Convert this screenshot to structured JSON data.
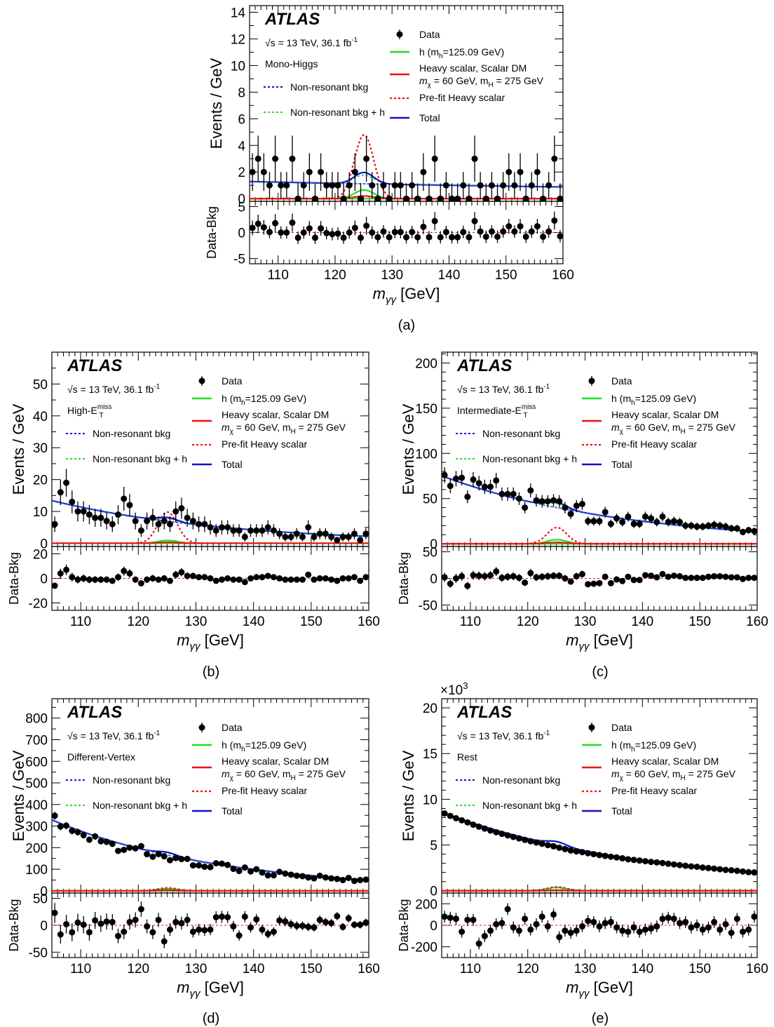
{
  "figure": {
    "experiment": "ATLAS",
    "energy_text": "√s = 13 TeV, 36.1 fb",
    "energy_sup": "-1",
    "xaxis_m": "m",
    "xaxis_sub": "γγ",
    "xaxis_unit": "[GeV]",
    "ylabel_top": "Events / GeV",
    "ylabel_bottom": "Data-Bkg",
    "legend": [
      {
        "id": "data",
        "label": "Data",
        "style": "marker",
        "color": "#000000"
      },
      {
        "id": "h",
        "label": "h (m",
        "sub": "h",
        "tail": "=125.09 GeV)",
        "style": "solid",
        "color": "#22dd22"
      },
      {
        "id": "hs",
        "label": "Heavy scalar, Scalar DM",
        "line2": "m",
        "line2_sub": "χ",
        "line2_mid": " = 60 GeV, m",
        "line2_sub2": "H",
        "line2_tail": " = 275 GeV",
        "style": "solid",
        "color": "#ee1111"
      },
      {
        "id": "prefit",
        "label": "Pre-fit Heavy scalar",
        "style": "dotted",
        "color": "#ee1111"
      },
      {
        "id": "total",
        "label": "Total",
        "style": "solid",
        "color": "#1111cc"
      },
      {
        "id": "nrb",
        "label": "Non-resonant bkg",
        "style": "dotted",
        "color": "#1111cc"
      },
      {
        "id": "nrbh",
        "label": "Non-resonant bkg + h",
        "style": "dotted",
        "color": "#22dd22"
      }
    ]
  },
  "chart_data": [
    {
      "type": "scatter",
      "panel_label": "(a)",
      "category": "Mono-Higgs",
      "x": [
        105.5,
        106.5,
        107.5,
        108.5,
        109.5,
        110.5,
        111.5,
        112.5,
        113.5,
        114.5,
        115.5,
        116.5,
        117.5,
        118.5,
        119.5,
        120.5,
        121.5,
        122.5,
        123.5,
        124.5,
        125.5,
        126.5,
        127.5,
        128.5,
        129.5,
        130.5,
        131.5,
        132.5,
        133.5,
        134.5,
        135.5,
        136.5,
        137.5,
        138.5,
        139.5,
        140.5,
        141.5,
        142.5,
        143.5,
        144.5,
        145.5,
        146.5,
        147.5,
        148.5,
        149.5,
        150.5,
        151.5,
        152.5,
        153.5,
        154.5,
        155.5,
        156.5,
        157.5,
        158.5,
        159.5
      ],
      "y": [
        2,
        3,
        2,
        1,
        3,
        1,
        1,
        3,
        0,
        1,
        2,
        0,
        2,
        1,
        1,
        1,
        0,
        1,
        2,
        0,
        3,
        1,
        0,
        1,
        0,
        1,
        1,
        0,
        1,
        0,
        2,
        0,
        3,
        0,
        1,
        0,
        0,
        1,
        0,
        3,
        1,
        0,
        1,
        0,
        1,
        2,
        1,
        2,
        0,
        1,
        2,
        0,
        1,
        3,
        0
      ],
      "ylim": [
        -0.2,
        14.5
      ],
      "yticks": [
        0,
        2,
        4,
        6,
        8,
        10,
        12,
        14
      ],
      "yticks_minor": 1,
      "bkg": [
        1.28,
        0.88
      ],
      "sig_peak": 0.65,
      "prefit_peak": 4.8,
      "hs_peak": 0.2,
      "residual": [
        0.9,
        1.7,
        1.0,
        0.1,
        1.8,
        0.0,
        0.0,
        1.9,
        -1.0,
        0.0,
        0.8,
        -1.0,
        0.8,
        -0.1,
        -0.3,
        -0.2,
        -1.0,
        0.0,
        0.9,
        -1.0,
        1.3,
        0.0,
        -0.9,
        0.2,
        -0.9,
        0.1,
        0.1,
        -0.9,
        0.1,
        -0.9,
        1.1,
        -0.9,
        2.2,
        -0.9,
        0.1,
        -0.9,
        -0.9,
        0.1,
        -0.9,
        2.2,
        0.2,
        -0.8,
        0.2,
        -0.8,
        0.2,
        1.2,
        0.2,
        1.2,
        -0.8,
        0.2,
        1.2,
        -0.8,
        0.2,
        2.3,
        -0.7
      ],
      "rlim": [
        -6,
        6
      ],
      "rticks": [
        -5,
        0,
        5
      ]
    },
    {
      "type": "scatter",
      "panel_label": "(b)",
      "category": "High-E",
      "category_sub": "T",
      "category_sup": "miss",
      "x": [
        105.5,
        106.5,
        107.5,
        108.5,
        109.5,
        110.5,
        111.5,
        112.5,
        113.5,
        114.5,
        115.5,
        116.5,
        117.5,
        118.5,
        119.5,
        120.5,
        121.5,
        122.5,
        123.5,
        124.5,
        125.5,
        126.5,
        127.5,
        128.5,
        129.5,
        130.5,
        131.5,
        132.5,
        133.5,
        134.5,
        135.5,
        136.5,
        137.5,
        138.5,
        139.5,
        140.5,
        141.5,
        142.5,
        143.5,
        144.5,
        145.5,
        146.5,
        147.5,
        148.5,
        149.5,
        150.5,
        151.5,
        152.5,
        153.5,
        154.5,
        155.5,
        156.5,
        157.5,
        158.5,
        159.5
      ],
      "y": [
        6,
        16,
        19,
        13,
        10,
        10,
        9,
        8,
        8,
        7,
        6,
        9,
        14,
        12,
        7,
        4,
        7,
        8,
        6,
        7,
        6,
        10,
        11,
        8,
        7,
        6,
        6,
        5,
        4,
        5,
        5,
        4,
        4,
        2,
        4,
        4,
        4,
        5,
        4,
        3,
        2,
        2,
        3,
        2,
        5,
        2,
        3,
        3,
        2,
        1,
        2,
        2,
        3,
        1,
        3
      ],
      "ylim": [
        -1,
        60
      ],
      "yticks": [
        0,
        10,
        20,
        30,
        40,
        50
      ],
      "yticks_minor": 5,
      "bkg": [
        13.2,
        2.2
      ],
      "sig_peak": 0.9,
      "prefit_peak": 9.8,
      "hs_peak": 0.3,
      "residual": [
        -6,
        4,
        7,
        1,
        -1,
        0,
        -1,
        -1,
        -1,
        -1,
        -2,
        1,
        6,
        4,
        -1,
        -4,
        -1,
        0,
        -1,
        0,
        -2,
        3,
        5,
        2,
        2,
        1,
        1,
        0,
        -2,
        -1,
        0,
        -1,
        -1,
        -3,
        0,
        1,
        1,
        2,
        1,
        0,
        -1,
        -1,
        -1,
        -1,
        3,
        -1,
        0,
        0,
        -1,
        -2,
        0,
        0,
        1,
        -2,
        1
      ],
      "rlim": [
        -26,
        26
      ],
      "rticks": [
        -20,
        0,
        20
      ]
    },
    {
      "type": "scatter",
      "panel_label": "(c)",
      "category": "Intermediate-E",
      "category_sub": "T",
      "category_sup": "miss",
      "x": [
        105.5,
        106.5,
        107.5,
        108.5,
        109.5,
        110.5,
        111.5,
        112.5,
        113.5,
        114.5,
        115.5,
        116.5,
        117.5,
        118.5,
        119.5,
        120.5,
        121.5,
        122.5,
        123.5,
        124.5,
        125.5,
        126.5,
        127.5,
        128.5,
        129.5,
        130.5,
        131.5,
        132.5,
        133.5,
        134.5,
        135.5,
        136.5,
        137.5,
        138.5,
        139.5,
        140.5,
        141.5,
        142.5,
        143.5,
        144.5,
        145.5,
        146.5,
        147.5,
        148.5,
        149.5,
        150.5,
        151.5,
        152.5,
        153.5,
        154.5,
        155.5,
        156.5,
        157.5,
        158.5,
        159.5
      ],
      "y": [
        76,
        64,
        72,
        73,
        52,
        71,
        67,
        63,
        63,
        70,
        55,
        55,
        55,
        50,
        40,
        59,
        48,
        47,
        47,
        48,
        47,
        40,
        33,
        42,
        44,
        25,
        25,
        25,
        35,
        22,
        28,
        24,
        30,
        22,
        22,
        30,
        28,
        24,
        30,
        24,
        25,
        24,
        20,
        20,
        19,
        19,
        20,
        21,
        20,
        19,
        17,
        17,
        13,
        15,
        14
      ],
      "ylim": [
        -3,
        212
      ],
      "yticks": [
        0,
        50,
        100,
        150,
        200
      ],
      "yticks_minor": 10,
      "bkg": [
        74,
        13.5
      ],
      "sig_peak": 4.5,
      "prefit_peak": 18,
      "hs_peak": 1.5,
      "residual": [
        2,
        -10,
        0,
        4,
        -14,
        6,
        5,
        4,
        6,
        13,
        1,
        3,
        4,
        1,
        -8,
        10,
        2,
        3,
        4,
        5,
        5,
        0,
        -6,
        4,
        8,
        -11,
        -10,
        -9,
        3,
        -9,
        -2,
        -5,
        3,
        -3,
        -3,
        6,
        5,
        2,
        8,
        3,
        5,
        4,
        1,
        1,
        1,
        1,
        3,
        4,
        4,
        3,
        2,
        2,
        -1,
        1,
        1
      ],
      "rlim": [
        -60,
        60
      ],
      "rticks": [
        -50,
        0,
        50
      ]
    },
    {
      "type": "scatter",
      "panel_label": "(d)",
      "category": "Different-Vertex",
      "x": [
        105.5,
        106.5,
        107.5,
        108.5,
        109.5,
        110.5,
        111.5,
        112.5,
        113.5,
        114.5,
        115.5,
        116.5,
        117.5,
        118.5,
        119.5,
        120.5,
        121.5,
        122.5,
        123.5,
        124.5,
        125.5,
        126.5,
        127.5,
        128.5,
        129.5,
        130.5,
        131.5,
        132.5,
        133.5,
        134.5,
        135.5,
        136.5,
        137.5,
        138.5,
        139.5,
        140.5,
        141.5,
        142.5,
        143.5,
        144.5,
        145.5,
        146.5,
        147.5,
        148.5,
        149.5,
        150.5,
        151.5,
        152.5,
        153.5,
        154.5,
        155.5,
        156.5,
        157.5,
        158.5,
        159.5
      ],
      "y": [
        348,
        298,
        302,
        278,
        272,
        258,
        237,
        252,
        230,
        227,
        218,
        185,
        190,
        200,
        197,
        207,
        170,
        158,
        170,
        160,
        142,
        152,
        147,
        148,
        118,
        118,
        112,
        110,
        128,
        126,
        120,
        102,
        92,
        108,
        90,
        100,
        85,
        72,
        72,
        88,
        80,
        75,
        70,
        68,
        62,
        58,
        70,
        62,
        58,
        55,
        50,
        60,
        46,
        50,
        52
      ],
      "ylim": [
        -10,
        890
      ],
      "yticks": [
        0,
        100,
        200,
        300,
        400,
        500,
        600,
        700,
        800
      ],
      "yticks_minor": 50,
      "bkg": [
        323,
        51
      ],
      "sig_peak": 10,
      "prefit_peak": 14,
      "hs_peak": 3,
      "residual": [
        23,
        -17,
        2,
        -13,
        5,
        1,
        -13,
        9,
        3,
        7,
        6,
        -20,
        -12,
        6,
        10,
        30,
        -2,
        -13,
        10,
        -30,
        -8,
        6,
        4,
        10,
        -12,
        -8,
        -9,
        -8,
        15,
        16,
        15,
        -2,
        -19,
        16,
        -4,
        11,
        -8,
        -16,
        -12,
        9,
        7,
        2,
        -1,
        -1,
        -3,
        -4,
        10,
        6,
        4,
        17,
        -3,
        13,
        1,
        1,
        5
      ],
      "rlim": [
        -60,
        60
      ],
      "rticks": [
        -50,
        0,
        50
      ]
    },
    {
      "type": "scatter",
      "panel_label": "(e)",
      "category": "Rest",
      "multiplier": "×10",
      "multiplier_sup": "3",
      "x": [
        105.5,
        106.5,
        107.5,
        108.5,
        109.5,
        110.5,
        111.5,
        112.5,
        113.5,
        114.5,
        115.5,
        116.5,
        117.5,
        118.5,
        119.5,
        120.5,
        121.5,
        122.5,
        123.5,
        124.5,
        125.5,
        126.5,
        127.5,
        128.5,
        129.5,
        130.5,
        131.5,
        132.5,
        133.5,
        134.5,
        135.5,
        136.5,
        137.5,
        138.5,
        139.5,
        140.5,
        141.5,
        142.5,
        143.5,
        144.5,
        145.5,
        146.5,
        147.5,
        148.5,
        149.5,
        150.5,
        151.5,
        152.5,
        153.5,
        154.5,
        155.5,
        156.5,
        157.5,
        158.5,
        159.5
      ],
      "y": [
        8.45,
        8.18,
        7.93,
        7.7,
        7.47,
        7.22,
        7.0,
        6.79,
        6.58,
        6.4,
        6.22,
        6.05,
        5.88,
        5.72,
        5.56,
        5.41,
        5.27,
        5.13,
        4.99,
        4.86,
        4.7,
        4.55,
        4.4,
        4.3,
        4.22,
        4.1,
        4.0,
        3.9,
        3.81,
        3.72,
        3.64,
        3.55,
        3.44,
        3.37,
        3.3,
        3.23,
        3.15,
        3.1,
        3.03,
        2.95,
        2.88,
        2.8,
        2.73,
        2.66,
        2.62,
        2.54,
        2.48,
        2.42,
        2.35,
        2.28,
        2.24,
        2.18,
        2.1,
        2.03,
        2.0
      ],
      "ylim": [
        -0.25,
        21
      ],
      "yticks": [
        0,
        5,
        10,
        15,
        20
      ],
      "yticks_minor": 1,
      "bkg": [
        8.45,
        1.96
      ],
      "sig_peak": 0.35,
      "prefit_peak": 0.42,
      "hs_peak": 0.05,
      "residual": [
        80,
        70,
        60,
        -60,
        50,
        50,
        -170,
        -100,
        -50,
        10,
        20,
        150,
        -20,
        -50,
        60,
        -40,
        10,
        80,
        -10,
        100,
        -110,
        -50,
        -70,
        -50,
        -10,
        40,
        30,
        -10,
        20,
        30,
        -20,
        -50,
        -60,
        -20,
        -60,
        -40,
        -30,
        -10,
        60,
        70,
        60,
        20,
        30,
        -20,
        0,
        -40,
        -20,
        30,
        -40,
        10,
        -70,
        60,
        -60,
        -40,
        80
      ],
      "rlim": [
        -300,
        300
      ],
      "rticks": [
        -200,
        0,
        200
      ]
    }
  ]
}
